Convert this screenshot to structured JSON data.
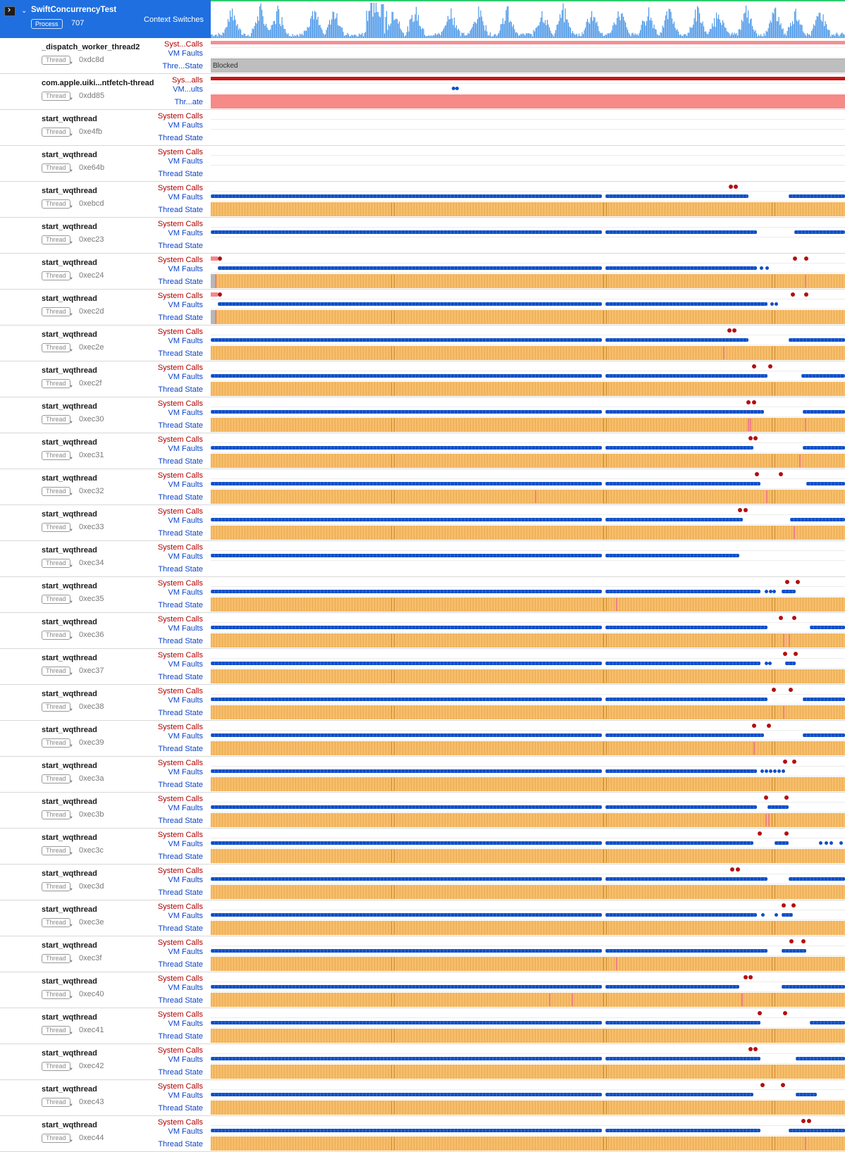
{
  "process": {
    "title": "SwiftConcurrencyTest",
    "badge": "Process",
    "pid": "707",
    "track": "Context Switches",
    "icon": "terminal-icon",
    "accent": "#1f6fe0"
  },
  "colors": {
    "system_calls": "#b10000",
    "vm_faults": "#0d44c8",
    "thread_running": "#f7bd6a",
    "blocked": "#bebebe",
    "context_switch_graph": "#4f9ae8"
  },
  "thread_badge": "Thread",
  "threads": [
    {
      "name": "_dispatch_worker_thread2",
      "id": "0xdc8d",
      "sys_label": "Syst...Calls",
      "vm_label": "VM Faults",
      "ts_label": "Thre...State",
      "state_text": "Blocked"
    },
    {
      "name": "com.apple.uiki...ntfetch-thread",
      "id": "0xdd85",
      "sys_label": "Sys...alls",
      "vm_label": "VM...ults",
      "ts_label": "Thr...ate"
    },
    {
      "name": "start_wqthread",
      "id": "0xe4fb",
      "sys_label": "System Calls",
      "vm_label": "VM Faults",
      "ts_label": "Thread State"
    },
    {
      "name": "start_wqthread",
      "id": "0xe64b",
      "sys_label": "System Calls",
      "vm_label": "VM Faults",
      "ts_label": "Thread State"
    },
    {
      "name": "start_wqthread",
      "id": "0xebcd",
      "sys_label": "System Calls",
      "vm_label": "VM Faults",
      "ts_label": "Thread State"
    },
    {
      "name": "start_wqthread",
      "id": "0xec23",
      "sys_label": "System Calls",
      "vm_label": "VM Faults",
      "ts_label": "Thread State"
    },
    {
      "name": "start_wqthread",
      "id": "0xec24",
      "sys_label": "System Calls",
      "vm_label": "VM Faults",
      "ts_label": "Thread State"
    },
    {
      "name": "start_wqthread",
      "id": "0xec2d",
      "sys_label": "System Calls",
      "vm_label": "VM Faults",
      "ts_label": "Thread State"
    },
    {
      "name": "start_wqthread",
      "id": "0xec2e",
      "sys_label": "System Calls",
      "vm_label": "VM Faults",
      "ts_label": "Thread State"
    },
    {
      "name": "start_wqthread",
      "id": "0xec2f",
      "sys_label": "System Calls",
      "vm_label": "VM Faults",
      "ts_label": "Thread State"
    },
    {
      "name": "start_wqthread",
      "id": "0xec30",
      "sys_label": "System Calls",
      "vm_label": "VM Faults",
      "ts_label": "Thread State"
    },
    {
      "name": "start_wqthread",
      "id": "0xec31",
      "sys_label": "System Calls",
      "vm_label": "VM Faults",
      "ts_label": "Thread State"
    },
    {
      "name": "start_wqthread",
      "id": "0xec32",
      "sys_label": "System Calls",
      "vm_label": "VM Faults",
      "ts_label": "Thread State"
    },
    {
      "name": "start_wqthread",
      "id": "0xec33",
      "sys_label": "System Calls",
      "vm_label": "VM Faults",
      "ts_label": "Thread State"
    },
    {
      "name": "start_wqthread",
      "id": "0xec34",
      "sys_label": "System Calls",
      "vm_label": "VM Faults",
      "ts_label": "Thread State"
    },
    {
      "name": "start_wqthread",
      "id": "0xec35",
      "sys_label": "System Calls",
      "vm_label": "VM Faults",
      "ts_label": "Thread State"
    },
    {
      "name": "start_wqthread",
      "id": "0xec36",
      "sys_label": "System Calls",
      "vm_label": "VM Faults",
      "ts_label": "Thread State"
    },
    {
      "name": "start_wqthread",
      "id": "0xec37",
      "sys_label": "System Calls",
      "vm_label": "VM Faults",
      "ts_label": "Thread State"
    },
    {
      "name": "start_wqthread",
      "id": "0xec38",
      "sys_label": "System Calls",
      "vm_label": "VM Faults",
      "ts_label": "Thread State"
    },
    {
      "name": "start_wqthread",
      "id": "0xec39",
      "sys_label": "System Calls",
      "vm_label": "VM Faults",
      "ts_label": "Thread State"
    },
    {
      "name": "start_wqthread",
      "id": "0xec3a",
      "sys_label": "System Calls",
      "vm_label": "VM Faults",
      "ts_label": "Thread State"
    },
    {
      "name": "start_wqthread",
      "id": "0xec3b",
      "sys_label": "System Calls",
      "vm_label": "VM Faults",
      "ts_label": "Thread State"
    },
    {
      "name": "start_wqthread",
      "id": "0xec3c",
      "sys_label": "System Calls",
      "vm_label": "VM Faults",
      "ts_label": "Thread State"
    },
    {
      "name": "start_wqthread",
      "id": "0xec3d",
      "sys_label": "System Calls",
      "vm_label": "VM Faults",
      "ts_label": "Thread State"
    },
    {
      "name": "start_wqthread",
      "id": "0xec3e",
      "sys_label": "System Calls",
      "vm_label": "VM Faults",
      "ts_label": "Thread State"
    },
    {
      "name": "start_wqthread",
      "id": "0xec3f",
      "sys_label": "System Calls",
      "vm_label": "VM Faults",
      "ts_label": "Thread State"
    },
    {
      "name": "start_wqthread",
      "id": "0xec40",
      "sys_label": "System Calls",
      "vm_label": "VM Faults",
      "ts_label": "Thread State"
    },
    {
      "name": "start_wqthread",
      "id": "0xec41",
      "sys_label": "System Calls",
      "vm_label": "VM Faults",
      "ts_label": "Thread State"
    },
    {
      "name": "start_wqthread",
      "id": "0xec42",
      "sys_label": "System Calls",
      "vm_label": "VM Faults",
      "ts_label": "Thread State"
    },
    {
      "name": "start_wqthread",
      "id": "0xec43",
      "sys_label": "System Calls",
      "vm_label": "VM Faults",
      "ts_label": "Thread State"
    },
    {
      "name": "start_wqthread",
      "id": "0xec44",
      "sys_label": "System Calls",
      "vm_label": "VM Faults",
      "ts_label": "Thread State"
    }
  ]
}
